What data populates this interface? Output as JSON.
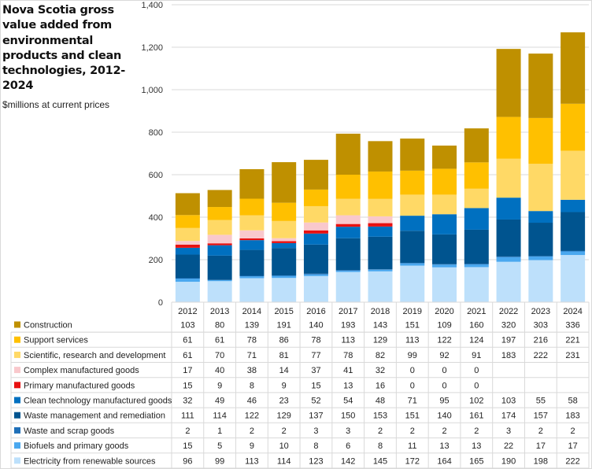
{
  "chart_data": {
    "type": "bar",
    "stacked": true,
    "title": "Nova Scotia gross value added from environmental products and clean technologies, 2012-2024",
    "subtitle": "$millions at current prices",
    "xlabel": "",
    "ylabel": "",
    "ylim": [
      0,
      1400
    ],
    "yticks": [
      0,
      200,
      400,
      600,
      800,
      1000,
      1200,
      1400
    ],
    "ytick_labels": [
      "0",
      "200",
      "400",
      "600",
      "800",
      "1,000",
      "1,200",
      "1,400"
    ],
    "grid": true,
    "legend": "data-table-below",
    "categories": [
      "2012",
      "2013",
      "2014",
      "2015",
      "2016",
      "2017",
      "2018",
      "2019",
      "2020",
      "2021",
      "2022",
      "2023",
      "2024"
    ],
    "series": [
      {
        "name": "Electricity from renewable sources",
        "color": "#bde0fb",
        "values": [
          96,
          99,
          113,
          114,
          123,
          142,
          145,
          172,
          164,
          165,
          190,
          198,
          222
        ]
      },
      {
        "name": "Biofuels and primary goods",
        "color": "#4aa8ef",
        "values": [
          15,
          5,
          9,
          10,
          8,
          6,
          8,
          11,
          13,
          13,
          22,
          17,
          17
        ]
      },
      {
        "name": "Waste and scrap goods",
        "color": "#1f6fb8",
        "values": [
          2,
          1,
          2,
          2,
          3,
          3,
          2,
          2,
          2,
          2,
          3,
          2,
          2
        ]
      },
      {
        "name": "Waste management and remediation",
        "color": "#00548f",
        "values": [
          111,
          114,
          122,
          129,
          137,
          150,
          153,
          151,
          140,
          161,
          174,
          157,
          183
        ]
      },
      {
        "name": "Clean technology manufactured goods",
        "color": "#0070c0",
        "values": [
          32,
          49,
          46,
          23,
          52,
          54,
          48,
          71,
          95,
          102,
          103,
          55,
          58
        ]
      },
      {
        "name": "Primary manufactured goods",
        "color": "#e81010",
        "values": [
          15,
          9,
          8,
          9,
          15,
          13,
          16,
          0,
          0,
          0,
          null,
          null,
          null
        ]
      },
      {
        "name": "Complex manufactured goods",
        "color": "#f9c8cc",
        "values": [
          17,
          40,
          38,
          14,
          37,
          41,
          32,
          0,
          0,
          0,
          null,
          null,
          null
        ]
      },
      {
        "name": "Scientific, research and development",
        "color": "#ffd966",
        "values": [
          61,
          70,
          71,
          81,
          77,
          78,
          82,
          99,
          92,
          91,
          183,
          222,
          231
        ]
      },
      {
        "name": "Support services",
        "color": "#ffc000",
        "values": [
          61,
          61,
          78,
          86,
          78,
          113,
          129,
          113,
          122,
          124,
          197,
          216,
          221
        ]
      },
      {
        "name": "Construction",
        "color": "#bf9000",
        "values": [
          103,
          80,
          139,
          191,
          140,
          193,
          143,
          151,
          109,
          160,
          320,
          303,
          336
        ]
      }
    ],
    "table_row_order": [
      "Construction",
      "Support services",
      "Scientific, research and development",
      "Complex manufactured goods",
      "Primary manufactured goods",
      "Clean technology manufactured goods",
      "Waste management and remediation",
      "Waste and scrap goods",
      "Biofuels and primary goods",
      "Electricity from renewable sources"
    ]
  }
}
